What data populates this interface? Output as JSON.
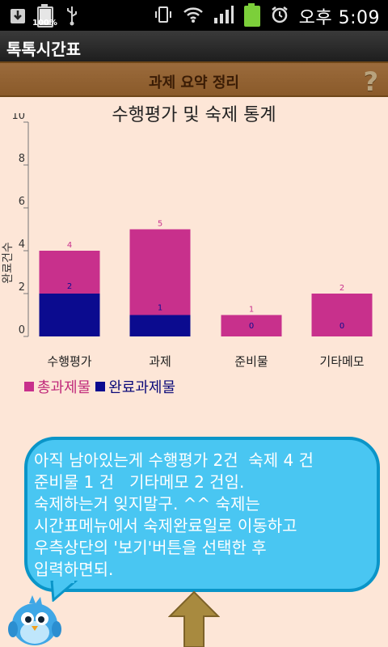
{
  "status": {
    "battery_text": "100%",
    "time": "오후 5:09",
    "icons": [
      "download-icon",
      "battery-icon",
      "usb-icon",
      "vibrate-icon",
      "wifi-icon",
      "signal-icon",
      "battery-charging-icon",
      "alarm-icon"
    ]
  },
  "app": {
    "title": "톡톡시간표"
  },
  "header": {
    "title": "과제 요약 정리",
    "help_icon": "question-icon"
  },
  "chart_data": {
    "type": "bar",
    "title": "수행평가 및 숙제 통계",
    "ylabel": "완료건수",
    "ylim": [
      0,
      10
    ],
    "yticks": [
      0,
      2,
      4,
      6,
      8,
      10
    ],
    "categories": [
      "수행평가",
      "과제",
      "준비물",
      "기타메모"
    ],
    "series": [
      {
        "name": "총과제물",
        "color": "#c8308c",
        "values": [
          4,
          5,
          1,
          2
        ]
      },
      {
        "name": "완료과제물",
        "color": "#0b0b8f",
        "values": [
          2,
          1,
          0,
          0
        ]
      }
    ],
    "legend": "bottom-left",
    "grid": false
  },
  "message": {
    "text": "아직 남아있는게 수행평가 2건  숙제 4 건\n준비물 1 건   기타메모 2 건임.\n숙제하는거 잊지말구. ^^ 숙제는\n시간표메뉴에서 숙제완료일로 이동하고\n우측상단의 '보기'버튼을 선택한 후\n입력하면되."
  }
}
